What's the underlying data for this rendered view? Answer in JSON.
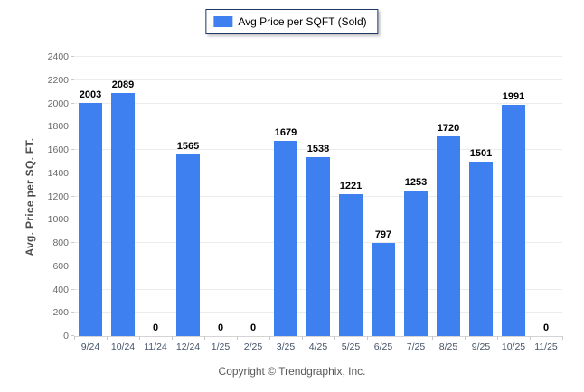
{
  "legend": {
    "label": "Avg Price per SQFT (Sold)"
  },
  "footer": {
    "text": "Copyright © Trendgraphix, Inc."
  },
  "colors": {
    "bar": "#3f80f0",
    "legend_border": "#1f3864",
    "grid": "#ececec",
    "axis_line": "#d4d4d4",
    "ytick_text": "#6b6b6b",
    "xtick_text": "#44546a",
    "ylabel_text": "#4d4d4d",
    "value_text": "#000000",
    "footer_text": "#595959"
  },
  "chart_data": {
    "type": "bar",
    "title": "",
    "xlabel": "",
    "ylabel": "Avg. Price per SQ. FT.",
    "legend": [
      "Avg Price per SQFT (Sold)"
    ],
    "legend_position": "top-center",
    "grid": true,
    "ylim": [
      0,
      2400
    ],
    "ytick_step": 200,
    "categories": [
      "9/24",
      "10/24",
      "11/24",
      "12/24",
      "1/25",
      "2/25",
      "3/25",
      "4/25",
      "5/25",
      "6/25",
      "7/25",
      "8/25",
      "9/25",
      "10/25",
      "11/25"
    ],
    "series": [
      {
        "name": "Avg Price per SQFT (Sold)",
        "values": [
          2003,
          2089,
          0,
          1565,
          0,
          0,
          1679,
          1538,
          1221,
          797,
          1253,
          1720,
          1501,
          1991,
          0
        ]
      }
    ]
  }
}
